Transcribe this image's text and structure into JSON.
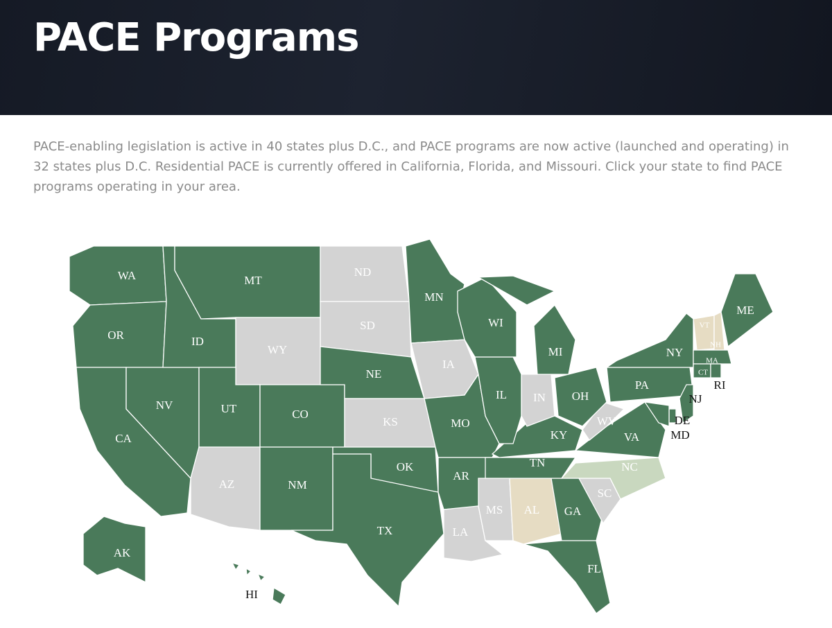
{
  "header": {
    "title": "PACE Programs"
  },
  "intro": "PACE-enabling legislation is active in 40 states plus D.C., and PACE programs are now active (launched and operating) in 32 states plus D.C. Residential PACE is currently offered in California, Florida, and Missouri. Click your state to find PACE programs operating in your area.",
  "map": {
    "states": [
      {
        "label": "WA",
        "color": "#4a7a5a"
      },
      {
        "label": "OR",
        "color": "#4a7a5a"
      },
      {
        "label": "CA",
        "color": "#4a7a5a"
      },
      {
        "label": "NV",
        "color": "#4a7a5a"
      },
      {
        "label": "ID",
        "color": "#4a7a5a"
      },
      {
        "label": "MT",
        "color": "#4a7a5a"
      },
      {
        "label": "WY",
        "color": "#d3d3d3"
      },
      {
        "label": "UT",
        "color": "#4a7a5a"
      },
      {
        "label": "CO",
        "color": "#4a7a5a"
      },
      {
        "label": "AZ",
        "color": "#d3d3d3"
      },
      {
        "label": "NM",
        "color": "#4a7a5a"
      },
      {
        "label": "ND",
        "color": "#d3d3d3"
      },
      {
        "label": "SD",
        "color": "#d3d3d3"
      },
      {
        "label": "NE",
        "color": "#4a7a5a"
      },
      {
        "label": "KS",
        "color": "#d3d3d3"
      },
      {
        "label": "OK",
        "color": "#4a7a5a"
      },
      {
        "label": "TX",
        "color": "#4a7a5a"
      },
      {
        "label": "MN",
        "color": "#4a7a5a"
      },
      {
        "label": "IA",
        "color": "#d3d3d3"
      },
      {
        "label": "MO",
        "color": "#4a7a5a"
      },
      {
        "label": "AR",
        "color": "#4a7a5a"
      },
      {
        "label": "LA",
        "color": "#d3d3d3"
      },
      {
        "label": "MS",
        "color": "#d3d3d3"
      },
      {
        "label": "AL",
        "color": "#e6dcc3"
      },
      {
        "label": "GA",
        "color": "#4a7a5a"
      },
      {
        "label": "FL",
        "color": "#4a7a5a"
      },
      {
        "label": "SC",
        "color": "#d3d3d3"
      },
      {
        "label": "NC",
        "color": "#c9d8bf"
      },
      {
        "label": "TN",
        "color": "#4a7a5a"
      },
      {
        "label": "KY",
        "color": "#4a7a5a"
      },
      {
        "label": "VA",
        "color": "#4a7a5a"
      },
      {
        "label": "WV",
        "color": "#d3d3d3"
      },
      {
        "label": "OH",
        "color": "#4a7a5a"
      },
      {
        "label": "IN",
        "color": "#d3d3d3"
      },
      {
        "label": "IL",
        "color": "#4a7a5a"
      },
      {
        "label": "WI",
        "color": "#4a7a5a"
      },
      {
        "label": "MI",
        "color": "#4a7a5a"
      },
      {
        "label": "PA",
        "color": "#4a7a5a"
      },
      {
        "label": "NY",
        "color": "#4a7a5a"
      },
      {
        "label": "VT",
        "color": "#e6dcc3"
      },
      {
        "label": "NH",
        "color": "#e6dcc3"
      },
      {
        "label": "ME",
        "color": "#4a7a5a"
      },
      {
        "label": "MA",
        "color": "#4a7a5a"
      },
      {
        "label": "CT",
        "color": "#4a7a5a"
      },
      {
        "label": "RI",
        "color": "#4a7a5a"
      },
      {
        "label": "NJ",
        "color": "#4a7a5a"
      },
      {
        "label": "DE",
        "color": "#4a7a5a"
      },
      {
        "label": "MD",
        "color": "#4a7a5a"
      },
      {
        "label": "AK",
        "color": "#4a7a5a"
      },
      {
        "label": "HI",
        "color": "#4a7a5a"
      }
    ]
  }
}
